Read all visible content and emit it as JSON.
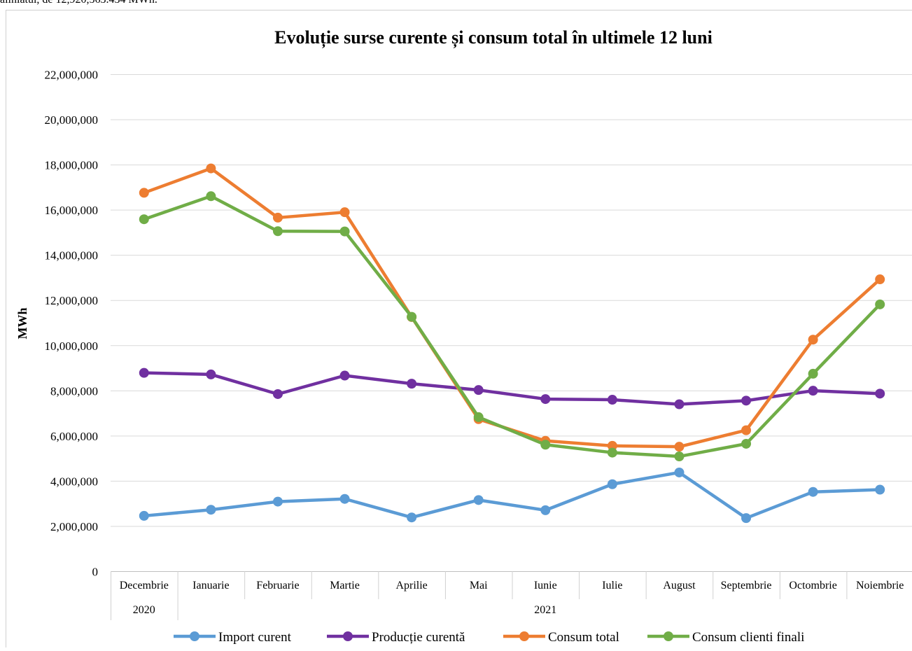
{
  "header_snippet": "aliniatul, de 12,920,563.434 MWh.",
  "chart_data": {
    "type": "line",
    "title": "Evoluție surse curente și consum total în ultimele 12 luni",
    "xlabel": "",
    "ylabel": "MWh",
    "ylim": [
      0,
      22000000
    ],
    "yticks": [
      0,
      2000000,
      4000000,
      6000000,
      8000000,
      10000000,
      12000000,
      14000000,
      16000000,
      18000000,
      20000000,
      22000000
    ],
    "ytick_labels": [
      "0",
      "2,000,000",
      "4,000,000",
      "6,000,000",
      "8,000,000",
      "10,000,000",
      "12,000,000",
      "14,000,000",
      "16,000,000",
      "18,000,000",
      "20,000,000",
      "22,000,000"
    ],
    "categories": [
      "Decembrie",
      "Ianuarie",
      "Februarie",
      "Martie",
      "Aprilie",
      "Mai",
      "Iunie",
      "Iulie",
      "August",
      "Septembrie",
      "Octombrie",
      "Noiembrie"
    ],
    "year_groups": [
      {
        "label": "2020",
        "start": 0,
        "end": 0
      },
      {
        "label": "2021",
        "start": 1,
        "end": 11
      }
    ],
    "grid": true,
    "legend_position": "bottom",
    "series": [
      {
        "name": "Import curent",
        "color": "#5B9BD5",
        "values": [
          2450000,
          2720000,
          3080000,
          3200000,
          2380000,
          3150000,
          2700000,
          3850000,
          4370000,
          2350000,
          3510000,
          3610000
        ]
      },
      {
        "name": "Producție curentă",
        "color": "#7030A0",
        "values": [
          8780000,
          8710000,
          7840000,
          8660000,
          8300000,
          8020000,
          7620000,
          7590000,
          7390000,
          7550000,
          7990000,
          7860000
        ]
      },
      {
        "name": "Consum total",
        "color": "#ED7D31",
        "values": [
          16750000,
          17830000,
          15650000,
          15890000,
          11250000,
          6730000,
          5770000,
          5550000,
          5510000,
          6240000,
          10250000,
          12920000
        ]
      },
      {
        "name": "Consum clienti finali",
        "color": "#70AD47",
        "values": [
          15580000,
          16600000,
          15050000,
          15040000,
          11260000,
          6820000,
          5600000,
          5250000,
          5080000,
          5640000,
          8740000,
          11810000
        ]
      }
    ]
  }
}
